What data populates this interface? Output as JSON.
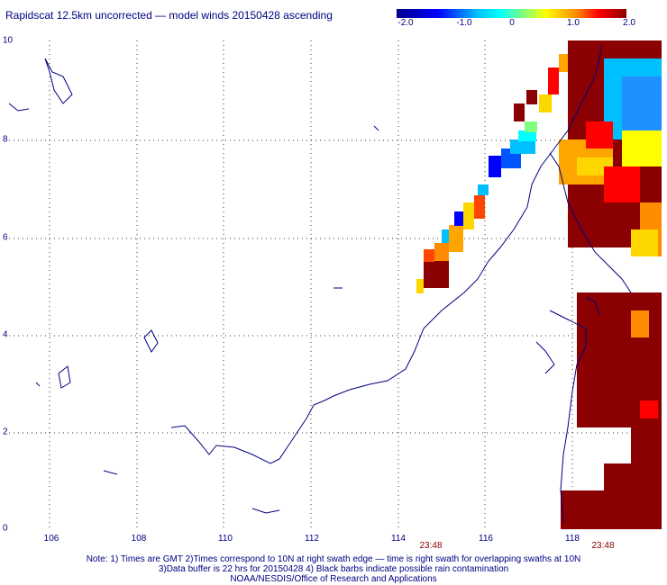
{
  "title": "Rapidscat 12.5km uncorrected — model winds 20150428 ascending",
  "colorbar": {
    "labels": [
      "-2.0",
      "-1.0",
      "0",
      "1.0",
      "2.0"
    ],
    "stops": [
      "#00008b",
      "#0000ff",
      "#00bfff",
      "#00ffff",
      "#7fff7f",
      "#ffff00",
      "#ff8c00",
      "#ff0000",
      "#8b0000"
    ]
  },
  "axes": {
    "x_ticks": [
      "106",
      "108",
      "110",
      "112",
      "114",
      "116",
      "118"
    ],
    "y_ticks": [
      "10",
      "8",
      "6",
      "4",
      "2",
      "0"
    ]
  },
  "times": [
    "23:48",
    "23:48"
  ],
  "notes": [
    "Note: 1) Times are GMT 2)Times correspond to 10N at right swath edge — time is right swath for overlapping swaths at 10N",
    "3)Data buffer is 22 hrs for 20150428 4) Black barbs indicate possible rain contamination",
    "NOAA/NESDIS/Office of Research and Applications"
  ],
  "colors": {
    "text": "#000080",
    "time_text": "#8b0000",
    "coast": "#00007f",
    "grid": "#333333"
  }
}
